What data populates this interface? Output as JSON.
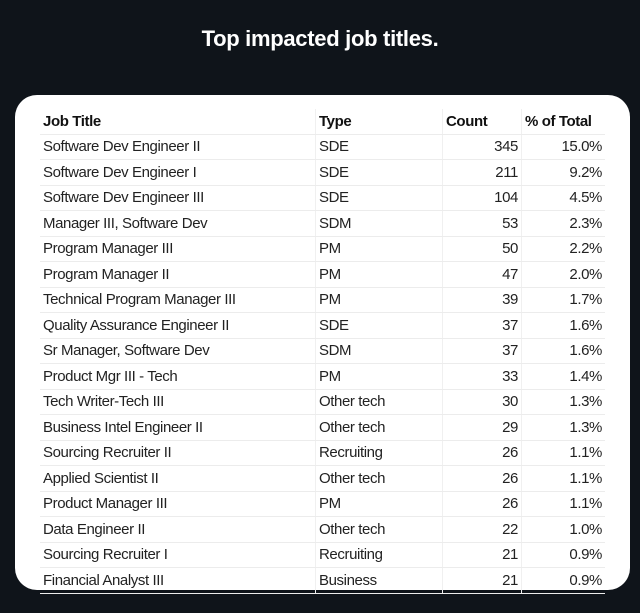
{
  "title": "Top impacted job titles.",
  "table": {
    "headers": [
      "Job Title",
      "Type",
      "Count",
      "% of Total"
    ],
    "rows": [
      [
        "Software Dev Engineer II",
        "SDE",
        "345",
        "15.0%"
      ],
      [
        "Software Dev Engineer I",
        "SDE",
        "211",
        "9.2%"
      ],
      [
        "Software Dev Engineer III",
        "SDE",
        "104",
        "4.5%"
      ],
      [
        "Manager III, Software Dev",
        "SDM",
        "53",
        "2.3%"
      ],
      [
        "Program Manager III",
        "PM",
        "50",
        "2.2%"
      ],
      [
        "Program Manager II",
        "PM",
        "47",
        "2.0%"
      ],
      [
        "Technical Program Manager III",
        "PM",
        "39",
        "1.7%"
      ],
      [
        "Quality Assurance Engineer II",
        "SDE",
        "37",
        "1.6%"
      ],
      [
        "Sr Manager, Software Dev",
        "SDM",
        "37",
        "1.6%"
      ],
      [
        "Product Mgr III - Tech",
        "PM",
        "33",
        "1.4%"
      ],
      [
        "Tech Writer-Tech III",
        "Other tech",
        "30",
        "1.3%"
      ],
      [
        "Business Intel Engineer II",
        "Other tech",
        "29",
        "1.3%"
      ],
      [
        "Sourcing Recruiter II",
        "Recruiting",
        "26",
        "1.1%"
      ],
      [
        "Applied Scientist II",
        "Other tech",
        "26",
        "1.1%"
      ],
      [
        "Product Manager III",
        "PM",
        "26",
        "1.1%"
      ],
      [
        "Data Engineer II",
        "Other tech",
        "22",
        "1.0%"
      ],
      [
        "Sourcing Recruiter I",
        "Recruiting",
        "21",
        "0.9%"
      ],
      [
        "Financial Analyst III",
        "Business",
        "21",
        "0.9%"
      ]
    ]
  }
}
